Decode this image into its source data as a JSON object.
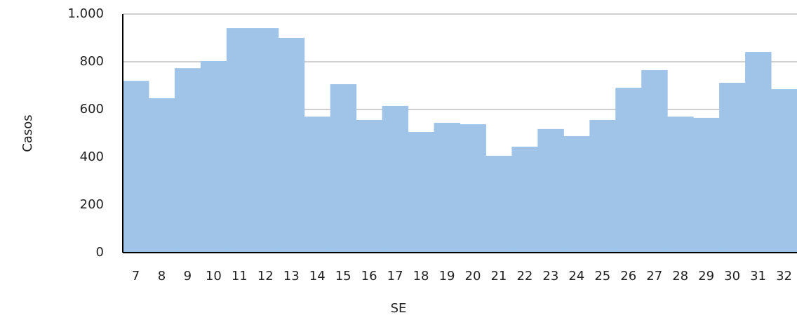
{
  "chart_data": {
    "type": "bar",
    "x_label": "SE",
    "y_label": "Casos",
    "categories": [
      "7",
      "8",
      "9",
      "10",
      "11",
      "12",
      "13",
      "14",
      "15",
      "16",
      "17",
      "18",
      "19",
      "20",
      "21",
      "22",
      "23",
      "24",
      "25",
      "26",
      "27",
      "28",
      "29",
      "30",
      "31",
      "32"
    ],
    "values": [
      720,
      647,
      773,
      803,
      941,
      941,
      900,
      570,
      706,
      556,
      615,
      506,
      544,
      538,
      406,
      444,
      518,
      488,
      556,
      691,
      765,
      570,
      565,
      712,
      841,
      685
    ],
    "color": "#9fc4e8",
    "ylim": [
      0,
      1000
    ],
    "yticks": [
      0,
      200,
      400,
      600,
      800,
      {
        "value": 1000,
        "label": "1.000"
      }
    ],
    "grid": true
  }
}
